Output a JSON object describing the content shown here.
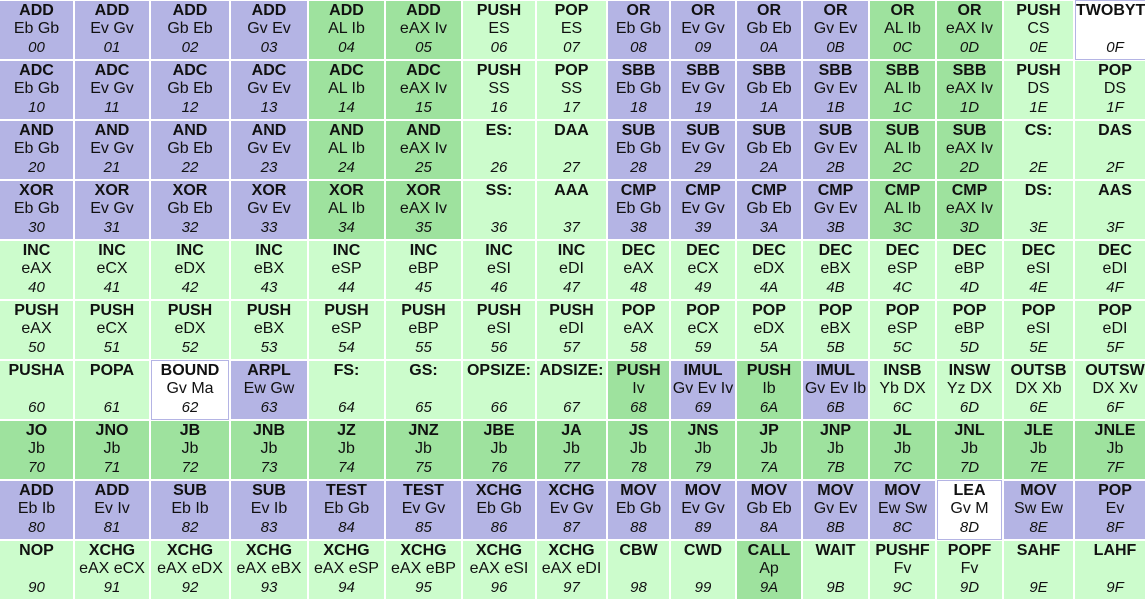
{
  "colors": {
    "m": "#b4b4e4",
    "a": "#9ee29e",
    "p": "#ccfccc",
    "w": "#ffffff"
  },
  "rows": [
    [
      [
        "ADD",
        "Eb Gb",
        "00",
        "m"
      ],
      [
        "ADD",
        "Ev Gv",
        "01",
        "m"
      ],
      [
        "ADD",
        "Gb Eb",
        "02",
        "m"
      ],
      [
        "ADD",
        "Gv Ev",
        "03",
        "m"
      ],
      [
        "ADD",
        "AL Ib",
        "04",
        "a"
      ],
      [
        "ADD",
        "eAX Iv",
        "05",
        "a"
      ],
      [
        "PUSH",
        "ES",
        "06",
        "p"
      ],
      [
        "POP",
        "ES",
        "07",
        "p"
      ],
      [
        "OR",
        "Eb Gb",
        "08",
        "m"
      ],
      [
        "OR",
        "Ev Gv",
        "09",
        "m"
      ],
      [
        "OR",
        "Gb Eb",
        "0A",
        "m"
      ],
      [
        "OR",
        "Gv Ev",
        "0B",
        "m"
      ],
      [
        "OR",
        "AL Ib",
        "0C",
        "a"
      ],
      [
        "OR",
        "eAX Iv",
        "0D",
        "a"
      ],
      [
        "PUSH",
        "CS",
        "0E",
        "p"
      ],
      [
        "TWOBYTE",
        "",
        "0F",
        "w"
      ]
    ],
    [
      [
        "ADC",
        "Eb Gb",
        "10",
        "m"
      ],
      [
        "ADC",
        "Ev Gv",
        "11",
        "m"
      ],
      [
        "ADC",
        "Gb Eb",
        "12",
        "m"
      ],
      [
        "ADC",
        "Gv Ev",
        "13",
        "m"
      ],
      [
        "ADC",
        "AL Ib",
        "14",
        "a"
      ],
      [
        "ADC",
        "eAX Iv",
        "15",
        "a"
      ],
      [
        "PUSH",
        "SS",
        "16",
        "p"
      ],
      [
        "POP",
        "SS",
        "17",
        "p"
      ],
      [
        "SBB",
        "Eb Gb",
        "18",
        "m"
      ],
      [
        "SBB",
        "Ev Gv",
        "19",
        "m"
      ],
      [
        "SBB",
        "Gb Eb",
        "1A",
        "m"
      ],
      [
        "SBB",
        "Gv Ev",
        "1B",
        "m"
      ],
      [
        "SBB",
        "AL Ib",
        "1C",
        "a"
      ],
      [
        "SBB",
        "eAX Iv",
        "1D",
        "a"
      ],
      [
        "PUSH",
        "DS",
        "1E",
        "p"
      ],
      [
        "POP",
        "DS",
        "1F",
        "p"
      ]
    ],
    [
      [
        "AND",
        "Eb Gb",
        "20",
        "m"
      ],
      [
        "AND",
        "Ev Gv",
        "21",
        "m"
      ],
      [
        "AND",
        "Gb Eb",
        "22",
        "m"
      ],
      [
        "AND",
        "Gv Ev",
        "23",
        "m"
      ],
      [
        "AND",
        "AL Ib",
        "24",
        "a"
      ],
      [
        "AND",
        "eAX Iv",
        "25",
        "a"
      ],
      [
        "ES:",
        "",
        "26",
        "p"
      ],
      [
        "DAA",
        "",
        "27",
        "p"
      ],
      [
        "SUB",
        "Eb Gb",
        "28",
        "m"
      ],
      [
        "SUB",
        "Ev Gv",
        "29",
        "m"
      ],
      [
        "SUB",
        "Gb Eb",
        "2A",
        "m"
      ],
      [
        "SUB",
        "Gv Ev",
        "2B",
        "m"
      ],
      [
        "SUB",
        "AL Ib",
        "2C",
        "a"
      ],
      [
        "SUB",
        "eAX Iv",
        "2D",
        "a"
      ],
      [
        "CS:",
        "",
        "2E",
        "p"
      ],
      [
        "DAS",
        "",
        "2F",
        "p"
      ]
    ],
    [
      [
        "XOR",
        "Eb Gb",
        "30",
        "m"
      ],
      [
        "XOR",
        "Ev Gv",
        "31",
        "m"
      ],
      [
        "XOR",
        "Gb Eb",
        "32",
        "m"
      ],
      [
        "XOR",
        "Gv Ev",
        "33",
        "m"
      ],
      [
        "XOR",
        "AL Ib",
        "34",
        "a"
      ],
      [
        "XOR",
        "eAX Iv",
        "35",
        "a"
      ],
      [
        "SS:",
        "",
        "36",
        "p"
      ],
      [
        "AAA",
        "",
        "37",
        "p"
      ],
      [
        "CMP",
        "Eb Gb",
        "38",
        "m"
      ],
      [
        "CMP",
        "Ev Gv",
        "39",
        "m"
      ],
      [
        "CMP",
        "Gb Eb",
        "3A",
        "m"
      ],
      [
        "CMP",
        "Gv Ev",
        "3B",
        "m"
      ],
      [
        "CMP",
        "AL Ib",
        "3C",
        "a"
      ],
      [
        "CMP",
        "eAX Iv",
        "3D",
        "a"
      ],
      [
        "DS:",
        "",
        "3E",
        "p"
      ],
      [
        "AAS",
        "",
        "3F",
        "p"
      ]
    ],
    [
      [
        "INC",
        "eAX",
        "40",
        "p"
      ],
      [
        "INC",
        "eCX",
        "41",
        "p"
      ],
      [
        "INC",
        "eDX",
        "42",
        "p"
      ],
      [
        "INC",
        "eBX",
        "43",
        "p"
      ],
      [
        "INC",
        "eSP",
        "44",
        "p"
      ],
      [
        "INC",
        "eBP",
        "45",
        "p"
      ],
      [
        "INC",
        "eSI",
        "46",
        "p"
      ],
      [
        "INC",
        "eDI",
        "47",
        "p"
      ],
      [
        "DEC",
        "eAX",
        "48",
        "p"
      ],
      [
        "DEC",
        "eCX",
        "49",
        "p"
      ],
      [
        "DEC",
        "eDX",
        "4A",
        "p"
      ],
      [
        "DEC",
        "eBX",
        "4B",
        "p"
      ],
      [
        "DEC",
        "eSP",
        "4C",
        "p"
      ],
      [
        "DEC",
        "eBP",
        "4D",
        "p"
      ],
      [
        "DEC",
        "eSI",
        "4E",
        "p"
      ],
      [
        "DEC",
        "eDI",
        "4F",
        "p"
      ]
    ],
    [
      [
        "PUSH",
        "eAX",
        "50",
        "p"
      ],
      [
        "PUSH",
        "eCX",
        "51",
        "p"
      ],
      [
        "PUSH",
        "eDX",
        "52",
        "p"
      ],
      [
        "PUSH",
        "eBX",
        "53",
        "p"
      ],
      [
        "PUSH",
        "eSP",
        "54",
        "p"
      ],
      [
        "PUSH",
        "eBP",
        "55",
        "p"
      ],
      [
        "PUSH",
        "eSI",
        "56",
        "p"
      ],
      [
        "PUSH",
        "eDI",
        "57",
        "p"
      ],
      [
        "POP",
        "eAX",
        "58",
        "p"
      ],
      [
        "POP",
        "eCX",
        "59",
        "p"
      ],
      [
        "POP",
        "eDX",
        "5A",
        "p"
      ],
      [
        "POP",
        "eBX",
        "5B",
        "p"
      ],
      [
        "POP",
        "eSP",
        "5C",
        "p"
      ],
      [
        "POP",
        "eBP",
        "5D",
        "p"
      ],
      [
        "POP",
        "eSI",
        "5E",
        "p"
      ],
      [
        "POP",
        "eDI",
        "5F",
        "p"
      ]
    ],
    [
      [
        "PUSHA",
        "",
        "60",
        "p"
      ],
      [
        "POPA",
        "",
        "61",
        "p"
      ],
      [
        "BOUND",
        "Gv Ma",
        "62",
        "w"
      ],
      [
        "ARPL",
        "Ew Gw",
        "63",
        "m"
      ],
      [
        "FS:",
        "",
        "64",
        "p"
      ],
      [
        "GS:",
        "",
        "65",
        "p"
      ],
      [
        "OPSIZE:",
        "",
        "66",
        "p"
      ],
      [
        "ADSIZE:",
        "",
        "67",
        "p"
      ],
      [
        "PUSH",
        "Iv",
        "68",
        "a"
      ],
      [
        "IMUL",
        "Gv Ev Iv",
        "69",
        "m"
      ],
      [
        "PUSH",
        "Ib",
        "6A",
        "a"
      ],
      [
        "IMUL",
        "Gv Ev Ib",
        "6B",
        "m"
      ],
      [
        "INSB",
        "Yb DX",
        "6C",
        "p"
      ],
      [
        "INSW",
        "Yz DX",
        "6D",
        "p"
      ],
      [
        "OUTSB",
        "DX Xb",
        "6E",
        "p"
      ],
      [
        "OUTSW",
        "DX Xv",
        "6F",
        "p"
      ]
    ],
    [
      [
        "JO",
        "Jb",
        "70",
        "a"
      ],
      [
        "JNO",
        "Jb",
        "71",
        "a"
      ],
      [
        "JB",
        "Jb",
        "72",
        "a"
      ],
      [
        "JNB",
        "Jb",
        "73",
        "a"
      ],
      [
        "JZ",
        "Jb",
        "74",
        "a"
      ],
      [
        "JNZ",
        "Jb",
        "75",
        "a"
      ],
      [
        "JBE",
        "Jb",
        "76",
        "a"
      ],
      [
        "JA",
        "Jb",
        "77",
        "a"
      ],
      [
        "JS",
        "Jb",
        "78",
        "a"
      ],
      [
        "JNS",
        "Jb",
        "79",
        "a"
      ],
      [
        "JP",
        "Jb",
        "7A",
        "a"
      ],
      [
        "JNP",
        "Jb",
        "7B",
        "a"
      ],
      [
        "JL",
        "Jb",
        "7C",
        "a"
      ],
      [
        "JNL",
        "Jb",
        "7D",
        "a"
      ],
      [
        "JLE",
        "Jb",
        "7E",
        "a"
      ],
      [
        "JNLE",
        "Jb",
        "7F",
        "a"
      ]
    ],
    [
      [
        "ADD",
        "Eb Ib",
        "80",
        "m"
      ],
      [
        "ADD",
        "Ev Iv",
        "81",
        "m"
      ],
      [
        "SUB",
        "Eb Ib",
        "82",
        "m"
      ],
      [
        "SUB",
        "Ev Ib",
        "83",
        "m"
      ],
      [
        "TEST",
        "Eb Gb",
        "84",
        "m"
      ],
      [
        "TEST",
        "Ev Gv",
        "85",
        "m"
      ],
      [
        "XCHG",
        "Eb Gb",
        "86",
        "m"
      ],
      [
        "XCHG",
        "Ev Gv",
        "87",
        "m"
      ],
      [
        "MOV",
        "Eb Gb",
        "88",
        "m"
      ],
      [
        "MOV",
        "Ev Gv",
        "89",
        "m"
      ],
      [
        "MOV",
        "Gb Eb",
        "8A",
        "m"
      ],
      [
        "MOV",
        "Gv Ev",
        "8B",
        "m"
      ],
      [
        "MOV",
        "Ew Sw",
        "8C",
        "m"
      ],
      [
        "LEA",
        "Gv M",
        "8D",
        "w"
      ],
      [
        "MOV",
        "Sw Ew",
        "8E",
        "m"
      ],
      [
        "POP",
        "Ev",
        "8F",
        "m"
      ]
    ],
    [
      [
        "NOP",
        "",
        "90",
        "p"
      ],
      [
        "XCHG",
        "eAX eCX",
        "91",
        "p"
      ],
      [
        "XCHG",
        "eAX eDX",
        "92",
        "p"
      ],
      [
        "XCHG",
        "eAX eBX",
        "93",
        "p"
      ],
      [
        "XCHG",
        "eAX eSP",
        "94",
        "p"
      ],
      [
        "XCHG",
        "eAX eBP",
        "95",
        "p"
      ],
      [
        "XCHG",
        "eAX eSI",
        "96",
        "p"
      ],
      [
        "XCHG",
        "eAX eDI",
        "97",
        "p"
      ],
      [
        "CBW",
        "",
        "98",
        "p"
      ],
      [
        "CWD",
        "",
        "99",
        "p"
      ],
      [
        "CALL",
        "Ap",
        "9A",
        "a"
      ],
      [
        "WAIT",
        "",
        "9B",
        "p"
      ],
      [
        "PUSHF",
        "Fv",
        "9C",
        "p"
      ],
      [
        "POPF",
        "Fv",
        "9D",
        "p"
      ],
      [
        "SAHF",
        "",
        "9E",
        "p"
      ],
      [
        "LAHF",
        "",
        "9F",
        "p"
      ]
    ]
  ]
}
